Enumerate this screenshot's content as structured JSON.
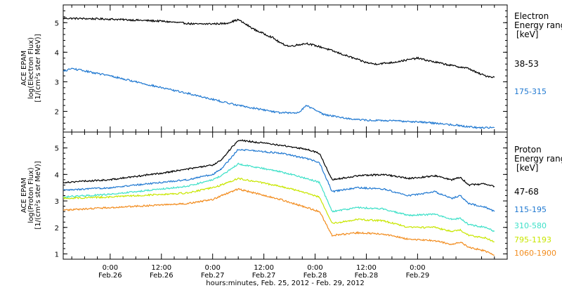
{
  "chart_data": [
    {
      "type": "line",
      "title": "",
      "ylabel_lines": [
        "ACE EPAM",
        "log(Electron Flux)",
        "[1/(cm²s ster MeV)]"
      ],
      "ylim": [
        1.3,
        5.6
      ],
      "yticks": [
        2,
        3,
        4,
        5
      ],
      "legend_title_lines": [
        "Electron",
        "Energy range",
        "[keV]"
      ],
      "xlim_hours": [
        -11,
        93
      ],
      "series": [
        {
          "name": "38-53",
          "color": "#000000",
          "x": [
            -11,
            0,
            12,
            20,
            27,
            30,
            34,
            38,
            40,
            42,
            46,
            50,
            56,
            60,
            62,
            66,
            72,
            75,
            80,
            84,
            86,
            88,
            90
          ],
          "y": [
            5.15,
            5.12,
            5.05,
            4.95,
            4.97,
            5.1,
            4.75,
            4.5,
            4.3,
            4.2,
            4.3,
            4.15,
            3.85,
            3.65,
            3.6,
            3.65,
            3.8,
            3.7,
            3.55,
            3.45,
            3.3,
            3.2,
            3.15
          ]
        },
        {
          "name": "175-315",
          "color": "#1f78d1",
          "x": [
            -11,
            -9,
            0,
            12,
            20,
            27,
            32,
            36,
            40,
            44,
            46,
            50,
            56,
            60,
            66,
            72,
            80,
            86,
            90
          ],
          "y": [
            3.35,
            3.45,
            3.2,
            2.8,
            2.55,
            2.3,
            2.15,
            2.05,
            1.95,
            1.95,
            2.2,
            1.9,
            1.75,
            1.7,
            1.68,
            1.65,
            1.55,
            1.45,
            1.45
          ]
        }
      ]
    },
    {
      "type": "line",
      "title": "",
      "ylabel_lines": [
        "ACE EPAM",
        "log(Proton Flux)",
        "[1/(cm²s ster MeV)]"
      ],
      "ylim": [
        0.8,
        5.6
      ],
      "yticks": [
        1,
        2,
        3,
        4,
        5
      ],
      "legend_title_lines": [
        "Proton",
        "Energy range",
        "[keV]"
      ],
      "xlim_hours": [
        -11,
        93
      ],
      "series": [
        {
          "name": "47-68",
          "color": "#000000",
          "x": [
            -11,
            0,
            12,
            18,
            24,
            26,
            30,
            40,
            46,
            49,
            52,
            58,
            64,
            70,
            76,
            80,
            82,
            84,
            88,
            90
          ],
          "y": [
            3.7,
            3.8,
            4.05,
            4.2,
            4.35,
            4.55,
            5.3,
            5.1,
            4.95,
            4.8,
            3.8,
            3.95,
            4.0,
            3.85,
            3.95,
            3.8,
            3.9,
            3.6,
            3.65,
            3.55
          ]
        },
        {
          "name": "115-195",
          "color": "#1f78d1",
          "x": [
            -11,
            0,
            12,
            18,
            24,
            26,
            30,
            40,
            46,
            49,
            52,
            58,
            64,
            70,
            76,
            80,
            82,
            84,
            88,
            90
          ],
          "y": [
            3.4,
            3.5,
            3.7,
            3.8,
            4.0,
            4.2,
            4.95,
            4.8,
            4.6,
            4.45,
            3.35,
            3.5,
            3.45,
            3.2,
            3.35,
            3.1,
            3.2,
            2.9,
            2.75,
            2.6
          ]
        },
        {
          "name": "310-580",
          "color": "#3de0c8",
          "x": [
            -11,
            0,
            12,
            18,
            24,
            26,
            30,
            40,
            46,
            49,
            52,
            58,
            64,
            70,
            76,
            80,
            82,
            84,
            88,
            90
          ],
          "y": [
            3.15,
            3.25,
            3.45,
            3.55,
            3.8,
            3.95,
            4.4,
            4.1,
            3.85,
            3.7,
            2.6,
            2.75,
            2.7,
            2.45,
            2.5,
            2.3,
            2.35,
            2.1,
            2.0,
            1.85
          ]
        },
        {
          "name": "795-1193",
          "color": "#c8e600",
          "x": [
            -11,
            0,
            12,
            18,
            24,
            26,
            30,
            40,
            46,
            49,
            52,
            58,
            64,
            70,
            76,
            80,
            82,
            84,
            88,
            90
          ],
          "y": [
            3.1,
            3.15,
            3.25,
            3.3,
            3.5,
            3.6,
            3.85,
            3.55,
            3.3,
            3.15,
            2.15,
            2.3,
            2.25,
            2.0,
            2.0,
            1.85,
            1.9,
            1.7,
            1.6,
            1.45
          ]
        },
        {
          "name": "1060-1900",
          "color": "#f28c1e",
          "x": [
            -11,
            0,
            12,
            18,
            24,
            26,
            30,
            40,
            46,
            49,
            52,
            58,
            64,
            70,
            76,
            80,
            82,
            84,
            88,
            90
          ],
          "y": [
            2.65,
            2.75,
            2.85,
            2.9,
            3.05,
            3.2,
            3.45,
            3.05,
            2.75,
            2.6,
            1.7,
            1.8,
            1.75,
            1.55,
            1.5,
            1.35,
            1.45,
            1.25,
            1.1,
            0.95
          ]
        }
      ]
    }
  ],
  "xaxis": {
    "ticks": [
      {
        "hours": 0,
        "time": "0:00",
        "date": "Feb.26"
      },
      {
        "hours": 12,
        "time": "12:00",
        "date": "Feb.26"
      },
      {
        "hours": 24,
        "time": "0:00",
        "date": "Feb.27"
      },
      {
        "hours": 36,
        "time": "12:00",
        "date": "Feb.27"
      },
      {
        "hours": 48,
        "time": "0:00",
        "date": "Feb.28"
      },
      {
        "hours": 60,
        "time": "12:00",
        "date": "Feb.28"
      },
      {
        "hours": 72,
        "time": "0:00",
        "date": "Feb.29"
      }
    ],
    "label": "hours:minutes, Feb. 25, 2012 - Feb. 29, 2012"
  }
}
